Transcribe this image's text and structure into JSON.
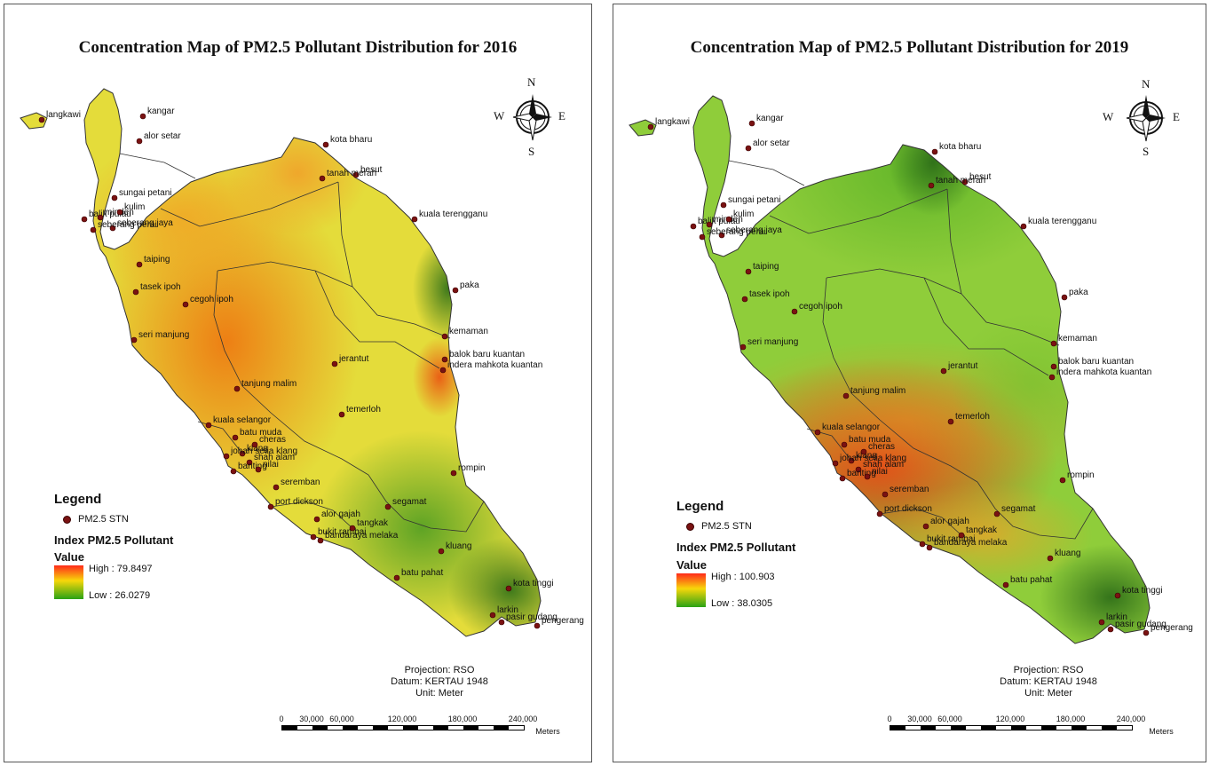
{
  "maps": [
    {
      "title": "Concentration Map of PM2.5 Pollutant Distribution for 2016",
      "legend": {
        "title": "Legend",
        "station_label": "PM2.5 STN",
        "index_title": "Index PM2.5 Pollutant",
        "value_label": "Value",
        "high_label": "High : 79.8497",
        "low_label": "Low : 26.0279"
      },
      "projection": [
        "Projection: RSO",
        "Datum: KERTAU 1948",
        "Unit: Meter"
      ],
      "scale": {
        "labels": [
          "0",
          "30,000",
          "60,000",
          "120,000",
          "180,000",
          "240,000"
        ],
        "unit": "Meters"
      },
      "compass": {
        "n": "N",
        "s": "S",
        "e": "E",
        "w": "W"
      },
      "hotspot_colors": [
        "#e8751a",
        "#f0a628",
        "#2f7a1c"
      ]
    },
    {
      "title": "Concentration Map of PM2.5 Pollutant Distribution for 2019",
      "legend": {
        "title": "Legend",
        "station_label": "PM2.5 STN",
        "index_title": "Index PM2.5 Pollutant",
        "value_label": "Value",
        "high_label": "High : 100.903",
        "low_label": "Low : 38.0305"
      },
      "projection": [
        "Projection: RSO",
        "Datum: KERTAU 1948",
        "Unit: Meter"
      ],
      "scale": {
        "labels": [
          "0",
          "30,000",
          "60,000",
          "120,000",
          "180,000",
          "240,000"
        ],
        "unit": "Meters"
      },
      "compass": {
        "n": "N",
        "s": "S",
        "e": "E",
        "w": "W"
      },
      "hotspot_colors": [
        "#e23a14",
        "#2f7a1c",
        "#8cc42c"
      ]
    }
  ],
  "stations": [
    "langkawi",
    "kangar",
    "alor setar",
    "sungai petani",
    "balik pulau",
    "minden",
    "kulim",
    "seberang jaya",
    "seberang perai",
    "taiping",
    "tasek ipoh",
    "cegoh ipoh",
    "seri manjung",
    "tanjung malim",
    "kuala selangor",
    "batu muda",
    "klang",
    "cheras",
    "johan setia klang",
    "shah alam",
    "banting",
    "nilai",
    "seremban",
    "port dickson",
    "alor gajah",
    "bukit rambai",
    "tangkak",
    "bandaraya melaka",
    "segamat",
    "kluang",
    "batu pahat",
    "kota tinggi",
    "larkin",
    "pasir gudang",
    "pengerang",
    "rompin",
    "temerloh",
    "jerantut",
    "balok baru kuantan",
    "indera mahkota kuantan",
    "kemaman",
    "paka",
    "kuala terengganu",
    "besut",
    "tanah merah",
    "kota bharu"
  ]
}
